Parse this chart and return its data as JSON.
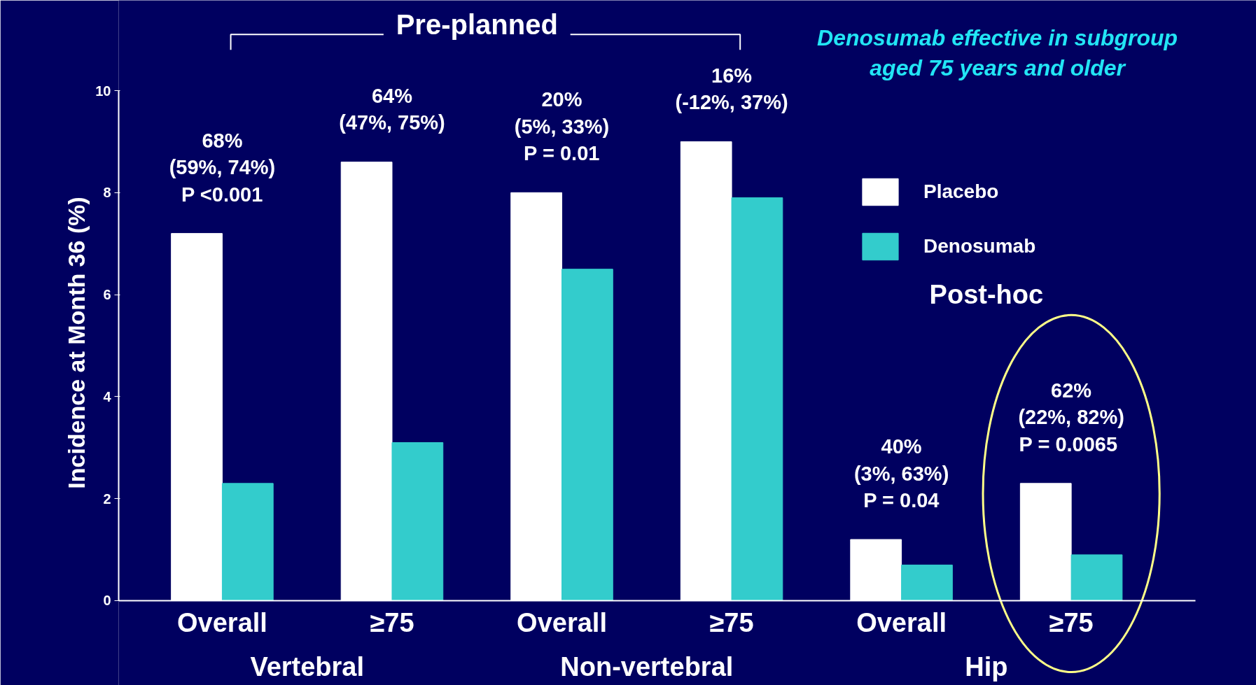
{
  "chart_data": {
    "type": "bar",
    "ylabel": "Incidence at Month 36 (%)",
    "subtitle": "Denosumab effective in subgroup\naged 75 years and older",
    "categories": [
      "Overall",
      "≥75",
      "Overall",
      "≥75",
      "Overall",
      "≥75"
    ],
    "series": [
      {
        "name": "Placebo",
        "color": "#ffffff",
        "values": [
          7.2,
          8.6,
          8.0,
          9.0,
          1.2,
          2.3
        ]
      },
      {
        "name": "Denosumab",
        "color": "#33cccc",
        "values": [
          2.3,
          3.1,
          6.5,
          7.9,
          0.7,
          0.9
        ]
      }
    ],
    "ylim": [
      0,
      10
    ],
    "yticks": [
      0,
      2,
      4,
      6,
      8,
      10
    ],
    "grid": false,
    "legend": "top right",
    "annotations": [
      "68%\n(59%, 74%)\nP <0.001",
      "64%\n(47%, 75%)",
      "20%\n(5%, 33%)\nP = 0.01",
      "16%\n(-12%, 37%)",
      "40%\n(3%, 63%)\nP = 0.04",
      "62%\n(22%, 82%)\nP  = 0.0065",
      "Pre-planned",
      "Post-hoc",
      "Vertebral",
      "Non-vertebral",
      "Hip"
    ]
  }
}
